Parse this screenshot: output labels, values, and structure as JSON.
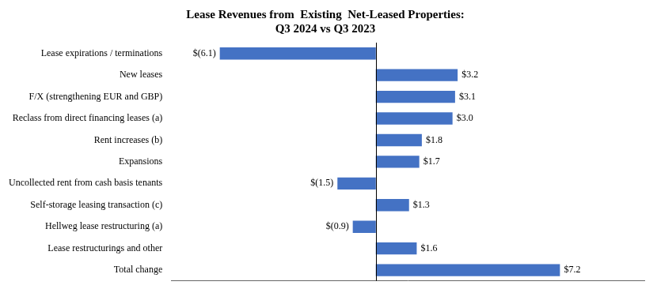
{
  "chart_data": {
    "type": "bar",
    "orientation": "horizontal",
    "title": "Lease Revenues from  Existing  Net-Leased Properties:\nQ3 2024 vs Q3 2023",
    "categories": [
      "Lease expirations / terminations",
      "New leases",
      "F/X (strengthening EUR and GBP)",
      "Reclass from direct financing leases (a)",
      "Rent increases (b)",
      "Expansions",
      "Uncollected rent from cash basis tenants",
      "Self-storage leasing transaction (c)",
      "Hellweg lease restructuring (a)",
      "Lease restructurings and other",
      "Total change"
    ],
    "values": [
      -6.1,
      3.2,
      3.1,
      3.0,
      1.8,
      1.7,
      -1.5,
      1.3,
      -0.9,
      1.6,
      7.2
    ],
    "value_labels": [
      "$(6.1)",
      "$3.2",
      "$3.1",
      "$3.0",
      "$1.8",
      "$1.7",
      "$(1.5)",
      "$1.3",
      "$(0.9)",
      "$1.6",
      "$7.2"
    ],
    "data_labels": true,
    "color": "#4472C4",
    "xlim": [
      -8.0,
      10.5
    ],
    "xticks": [],
    "tick_labels": "y",
    "grid": false
  }
}
